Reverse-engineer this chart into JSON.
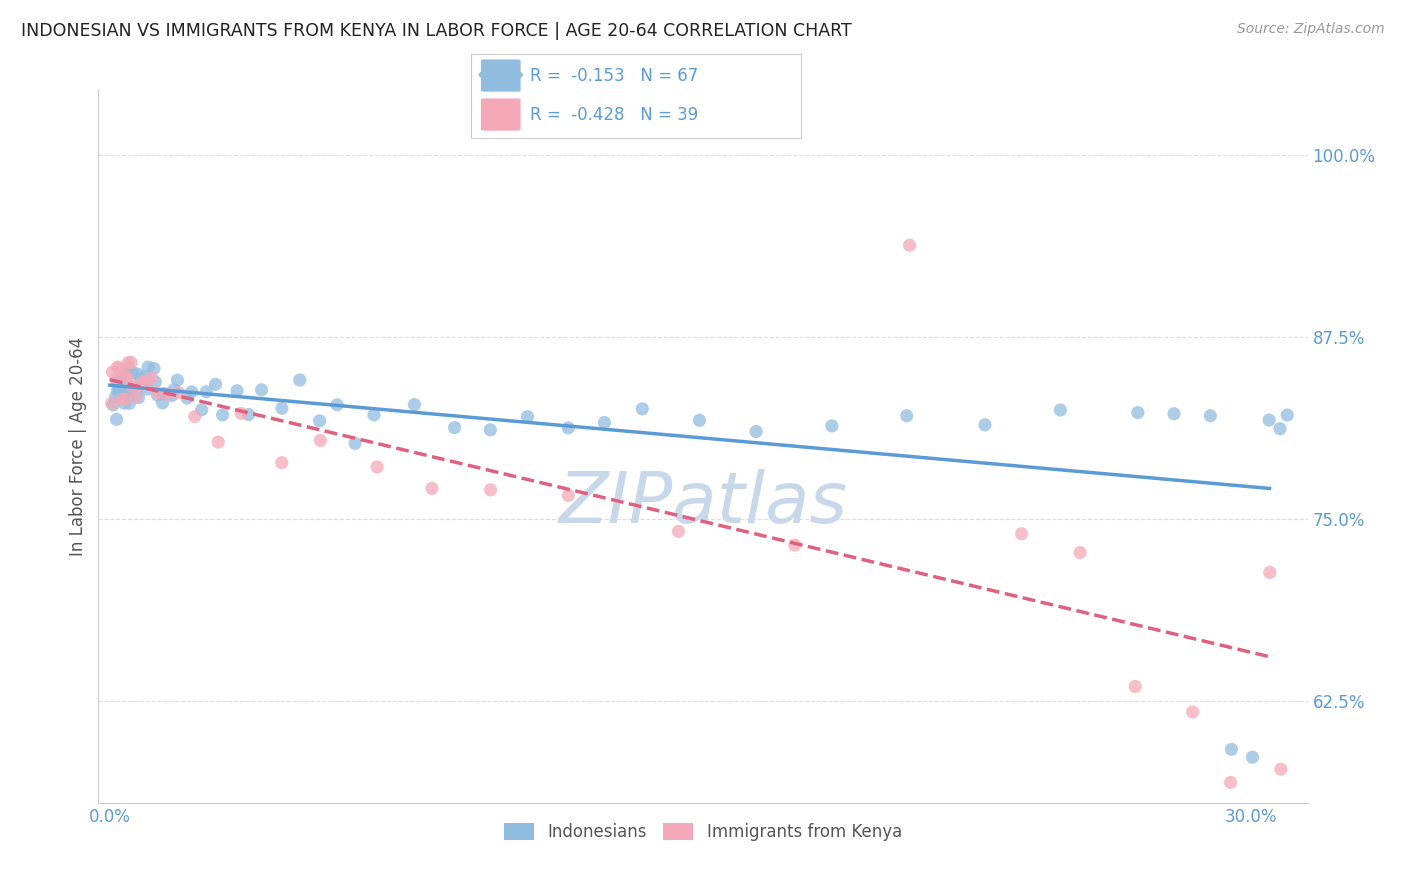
{
  "title": "INDONESIAN VS IMMIGRANTS FROM KENYA IN LABOR FORCE | AGE 20-64 CORRELATION CHART",
  "source": "Source: ZipAtlas.com",
  "ylabel": "In Labor Force | Age 20-64",
  "y_ticks": [
    0.625,
    0.75,
    0.875,
    1.0
  ],
  "y_tick_labels": [
    "62.5%",
    "75.0%",
    "87.5%",
    "100.0%"
  ],
  "xmin": -0.003,
  "xmax": 0.315,
  "ymin": 0.555,
  "ymax": 1.045,
  "r1": -0.153,
  "r2": -0.428,
  "n1": 67,
  "n2": 39,
  "blue_color": "#90bce0",
  "pink_color": "#f4a8b8",
  "blue_line_color": "#5b9bd5",
  "pink_line_color": "#e06080",
  "title_color": "#222222",
  "source_color": "#999999",
  "grid_color": "#dddddd",
  "watermark_color": "#c8d8ea",
  "legend_label1": "Indonesians",
  "legend_label2": "Immigrants from Kenya",
  "scatter_alpha": 0.75,
  "scatter_size": 90,
  "indo_x": [
    0.001,
    0.001,
    0.002,
    0.002,
    0.002,
    0.003,
    0.003,
    0.003,
    0.004,
    0.004,
    0.004,
    0.005,
    0.005,
    0.005,
    0.006,
    0.006,
    0.007,
    0.007,
    0.008,
    0.008,
    0.009,
    0.01,
    0.01,
    0.011,
    0.012,
    0.013,
    0.014,
    0.015,
    0.016,
    0.017,
    0.018,
    0.02,
    0.022,
    0.024,
    0.026,
    0.028,
    0.03,
    0.033,
    0.036,
    0.04,
    0.045,
    0.05,
    0.055,
    0.06,
    0.065,
    0.07,
    0.08,
    0.09,
    0.1,
    0.11,
    0.12,
    0.13,
    0.14,
    0.155,
    0.17,
    0.19,
    0.21,
    0.23,
    0.25,
    0.27,
    0.28,
    0.29,
    0.295,
    0.3,
    0.305,
    0.308,
    0.31
  ],
  "indo_y": [
    0.84,
    0.83,
    0.845,
    0.835,
    0.82,
    0.85,
    0.84,
    0.83,
    0.845,
    0.835,
    0.825,
    0.855,
    0.84,
    0.83,
    0.845,
    0.835,
    0.855,
    0.84,
    0.85,
    0.835,
    0.84,
    0.845,
    0.835,
    0.85,
    0.84,
    0.835,
    0.83,
    0.84,
    0.835,
    0.825,
    0.84,
    0.835,
    0.84,
    0.83,
    0.835,
    0.84,
    0.83,
    0.835,
    0.825,
    0.83,
    0.825,
    0.835,
    0.82,
    0.83,
    0.8,
    0.815,
    0.825,
    0.82,
    0.81,
    0.82,
    0.815,
    0.82,
    0.815,
    0.82,
    0.815,
    0.81,
    0.82,
    0.815,
    0.82,
    0.82,
    0.82,
    0.815,
    0.59,
    0.59,
    0.82,
    0.815,
    0.82
  ],
  "kenya_x": [
    0.001,
    0.001,
    0.002,
    0.002,
    0.003,
    0.003,
    0.004,
    0.004,
    0.005,
    0.005,
    0.006,
    0.006,
    0.007,
    0.008,
    0.009,
    0.01,
    0.011,
    0.013,
    0.015,
    0.018,
    0.022,
    0.028,
    0.035,
    0.045,
    0.055,
    0.07,
    0.085,
    0.1,
    0.12,
    0.15,
    0.18,
    0.21,
    0.24,
    0.255,
    0.27,
    0.285,
    0.295,
    0.305,
    0.308
  ],
  "kenya_y": [
    0.845,
    0.835,
    0.855,
    0.84,
    0.85,
    0.84,
    0.845,
    0.835,
    0.855,
    0.845,
    0.85,
    0.84,
    0.845,
    0.85,
    0.84,
    0.845,
    0.84,
    0.835,
    0.84,
    0.83,
    0.825,
    0.815,
    0.81,
    0.8,
    0.8,
    0.78,
    0.77,
    0.78,
    0.76,
    0.75,
    0.74,
    0.94,
    0.735,
    0.725,
    0.63,
    0.62,
    0.57,
    0.72,
    0.58
  ]
}
